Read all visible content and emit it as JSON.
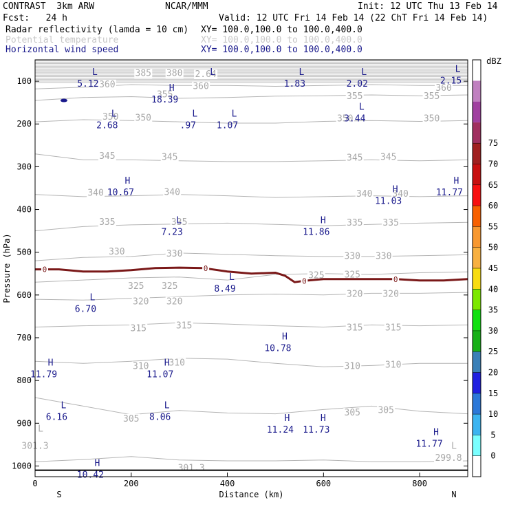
{
  "header": {
    "model": "CONTRAST  3km ARW",
    "org": "NCAR/MMM",
    "init": "Init: 12 UTC Thu 13 Feb 14",
    "fcst": "Fcst:   24 h",
    "valid": "Valid: 12 UTC Fri 14 Feb 14 (22 ChT Fri 14 Feb 14)",
    "fields": [
      {
        "label": "Radar reflectivity (lamda = 10 cm)",
        "xy": "XY= 100.0,100.0 to 100.0,400.0",
        "color": "#000000"
      },
      {
        "label": "Potential temperature",
        "xy": "XY= 100.0,100.0 to 100.0,400.0",
        "color": "#c8c8c8"
      },
      {
        "label": "Horizontal wind speed",
        "xy": "XY= 100.0,100.0 to 100.0,400.0",
        "color": "#1a1a8c"
      }
    ]
  },
  "chart_data": {
    "type": "cross-section",
    "xlabel": "Distance (km)",
    "ylabel": "Pressure (hPa)",
    "xlim": [
      0,
      900
    ],
    "ylim_pressure": [
      1025,
      50
    ],
    "x_ticks": [
      "0",
      "200",
      "400",
      "600",
      "800"
    ],
    "y_ticks": [
      "100",
      "200",
      "300",
      "400",
      "500",
      "600",
      "700",
      "800",
      "900",
      "1000"
    ],
    "end_labels": {
      "left": "S",
      "right": "N"
    },
    "theta_contours": [
      {
        "level": 300,
        "points": [
          [
            0,
            990
          ],
          [
            100,
            985
          ],
          [
            200,
            978
          ],
          [
            300,
            986
          ],
          [
            400,
            988
          ],
          [
            500,
            988
          ],
          [
            600,
            986
          ],
          [
            700,
            990
          ],
          [
            800,
            990
          ],
          [
            900,
            988
          ]
        ]
      },
      {
        "level": 305,
        "points": [
          [
            0,
            840
          ],
          [
            100,
            860
          ],
          [
            200,
            880
          ],
          [
            300,
            870
          ],
          [
            400,
            876
          ],
          [
            500,
            878
          ],
          [
            600,
            868
          ],
          [
            700,
            860
          ],
          [
            800,
            872
          ],
          [
            900,
            878
          ]
        ]
      },
      {
        "level": 310,
        "points": [
          [
            0,
            755
          ],
          [
            100,
            760
          ],
          [
            200,
            755
          ],
          [
            300,
            748
          ],
          [
            400,
            750
          ],
          [
            500,
            760
          ],
          [
            600,
            768
          ],
          [
            700,
            765
          ],
          [
            800,
            760
          ],
          [
            900,
            760
          ]
        ]
      },
      {
        "level": 315,
        "points": [
          [
            0,
            675
          ],
          [
            100,
            672
          ],
          [
            200,
            670
          ],
          [
            300,
            665
          ],
          [
            400,
            668
          ],
          [
            500,
            672
          ],
          [
            600,
            675
          ],
          [
            700,
            670
          ],
          [
            800,
            672
          ],
          [
            900,
            670
          ]
        ]
      },
      {
        "level": 320,
        "points": [
          [
            0,
            610
          ],
          [
            100,
            612
          ],
          [
            200,
            608
          ],
          [
            300,
            604
          ],
          [
            400,
            600
          ],
          [
            500,
            598
          ],
          [
            600,
            600
          ],
          [
            700,
            596
          ],
          [
            800,
            596
          ],
          [
            900,
            594
          ]
        ]
      },
      {
        "level": 325,
        "points": [
          [
            0,
            570
          ],
          [
            100,
            565
          ],
          [
            200,
            560
          ],
          [
            300,
            558
          ],
          [
            400,
            565
          ],
          [
            500,
            552
          ],
          [
            600,
            550
          ],
          [
            700,
            552
          ],
          [
            800,
            548
          ],
          [
            900,
            546
          ]
        ]
      },
      {
        "level": 330,
        "points": [
          [
            0,
            520
          ],
          [
            100,
            512
          ],
          [
            200,
            510
          ],
          [
            300,
            502
          ],
          [
            400,
            505
          ],
          [
            500,
            508
          ],
          [
            600,
            510
          ],
          [
            700,
            510
          ],
          [
            800,
            508
          ],
          [
            900,
            506
          ]
        ]
      },
      {
        "level": 335,
        "points": [
          [
            0,
            450
          ],
          [
            100,
            440
          ],
          [
            200,
            436
          ],
          [
            300,
            434
          ],
          [
            400,
            432
          ],
          [
            500,
            435
          ],
          [
            600,
            438
          ],
          [
            700,
            435
          ],
          [
            800,
            432
          ],
          [
            900,
            430
          ]
        ]
      },
      {
        "level": 340,
        "points": [
          [
            0,
            365
          ],
          [
            100,
            370
          ],
          [
            200,
            368
          ],
          [
            300,
            365
          ],
          [
            400,
            368
          ],
          [
            500,
            372
          ],
          [
            600,
            370
          ],
          [
            700,
            368
          ],
          [
            800,
            370
          ],
          [
            900,
            368
          ]
        ]
      },
      {
        "level": 345,
        "points": [
          [
            0,
            270
          ],
          [
            100,
            284
          ],
          [
            200,
            284
          ],
          [
            300,
            286
          ],
          [
            400,
            288
          ],
          [
            500,
            288
          ],
          [
            600,
            286
          ],
          [
            700,
            284
          ],
          [
            800,
            286
          ],
          [
            900,
            284
          ]
        ]
      },
      {
        "level": 350,
        "points": [
          [
            0,
            195
          ],
          [
            100,
            190
          ],
          [
            200,
            192
          ],
          [
            300,
            195
          ],
          [
            400,
            198
          ],
          [
            500,
            198
          ],
          [
            600,
            194
          ],
          [
            700,
            192
          ],
          [
            800,
            194
          ],
          [
            900,
            192
          ]
        ]
      },
      {
        "level": 355,
        "points": [
          [
            0,
            145
          ],
          [
            100,
            138
          ],
          [
            200,
            136
          ],
          [
            300,
            140
          ],
          [
            400,
            138
          ],
          [
            500,
            135
          ],
          [
            600,
            134
          ],
          [
            700,
            132
          ],
          [
            800,
            134
          ],
          [
            900,
            132
          ]
        ]
      },
      {
        "level": 360,
        "points": [
          [
            0,
            118
          ],
          [
            100,
            114
          ],
          [
            200,
            108
          ],
          [
            300,
            110
          ],
          [
            400,
            110
          ],
          [
            500,
            112
          ],
          [
            600,
            110
          ],
          [
            700,
            108
          ],
          [
            800,
            110
          ],
          [
            900,
            110
          ]
        ]
      }
    ],
    "theta_labels": [
      {
        "text": "385",
        "x": 225,
        "p": 80
      },
      {
        "text": "380",
        "x": 290,
        "p": 80
      },
      {
        "text": "2.64",
        "x": 355,
        "p": 82
      },
      {
        "text": "360",
        "x": 150,
        "p": 106
      },
      {
        "text": "360",
        "x": 345,
        "p": 110
      },
      {
        "text": "360",
        "x": 850,
        "p": 114
      },
      {
        "text": "355",
        "x": 270,
        "p": 130
      },
      {
        "text": "355",
        "x": 665,
        "p": 134
      },
      {
        "text": "355",
        "x": 825,
        "p": 134
      },
      {
        "text": "350",
        "x": 157,
        "p": 182
      },
      {
        "text": "350",
        "x": 225,
        "p": 184
      },
      {
        "text": "350",
        "x": 645,
        "p": 186
      },
      {
        "text": "350",
        "x": 825,
        "p": 186
      },
      {
        "text": "345",
        "x": 150,
        "p": 274
      },
      {
        "text": "345",
        "x": 280,
        "p": 276
      },
      {
        "text": "345",
        "x": 665,
        "p": 278
      },
      {
        "text": "345",
        "x": 735,
        "p": 276
      },
      {
        "text": "340",
        "x": 126,
        "p": 360
      },
      {
        "text": "340",
        "x": 285,
        "p": 358
      },
      {
        "text": "340",
        "x": 685,
        "p": 362
      },
      {
        "text": "340",
        "x": 760,
        "p": 362
      },
      {
        "text": "335",
        "x": 150,
        "p": 428
      },
      {
        "text": "335",
        "x": 300,
        "p": 428
      },
      {
        "text": "335",
        "x": 665,
        "p": 430
      },
      {
        "text": "335",
        "x": 740,
        "p": 430
      },
      {
        "text": "330",
        "x": 170,
        "p": 497
      },
      {
        "text": "330",
        "x": 290,
        "p": 502
      },
      {
        "text": "330",
        "x": 660,
        "p": 508
      },
      {
        "text": "330",
        "x": 725,
        "p": 508
      },
      {
        "text": "325",
        "x": 210,
        "p": 578
      },
      {
        "text": "325",
        "x": 280,
        "p": 578
      },
      {
        "text": "325",
        "x": 585,
        "p": 553
      },
      {
        "text": "325",
        "x": 660,
        "p": 551
      },
      {
        "text": "320",
        "x": 220,
        "p": 614
      },
      {
        "text": "320",
        "x": 290,
        "p": 614
      },
      {
        "text": "320",
        "x": 665,
        "p": 596
      },
      {
        "text": "320",
        "x": 740,
        "p": 596
      },
      {
        "text": "315",
        "x": 215,
        "p": 677
      },
      {
        "text": "315",
        "x": 310,
        "p": 670
      },
      {
        "text": "315",
        "x": 665,
        "p": 675
      },
      {
        "text": "315",
        "x": 745,
        "p": 675
      },
      {
        "text": "310",
        "x": 220,
        "p": 765
      },
      {
        "text": "310",
        "x": 295,
        "p": 757
      },
      {
        "text": "310",
        "x": 660,
        "p": 765
      },
      {
        "text": "310",
        "x": 745,
        "p": 762
      },
      {
        "text": "305",
        "x": 200,
        "p": 888
      },
      {
        "text": "305",
        "x": 660,
        "p": 874
      },
      {
        "text": "305",
        "x": 730,
        "p": 868
      },
      {
        "text": "301.3",
        "x": 0,
        "p": 952
      },
      {
        "text": "301.3",
        "x": 325,
        "p": 1003
      },
      {
        "text": "299.8",
        "x": 860,
        "p": 980
      }
    ],
    "theta_extrema": [
      {
        "type": "L",
        "x": 0,
        "p": 920
      },
      {
        "type": "L",
        "x": 860,
        "p": 960
      }
    ],
    "wind_extrema": [
      {
        "type": "L",
        "value": "5.12",
        "x": 110,
        "p": 85
      },
      {
        "type": "L",
        "value": "",
        "x": 355,
        "p": 85
      },
      {
        "type": "L",
        "value": "1.83",
        "x": 540,
        "p": 85
      },
      {
        "type": "L",
        "value": "2.02",
        "x": 670,
        "p": 85
      },
      {
        "type": "L",
        "value": "2.15",
        "x": 865,
        "p": 78
      },
      {
        "type": "H",
        "value": "18.39",
        "x": 270,
        "p": 122
      },
      {
        "type": "L",
        "value": "2.68",
        "x": 150,
        "p": 183
      },
      {
        "type": "L",
        "value": ".97",
        "x": 318,
        "p": 183
      },
      {
        "type": "L",
        "value": "1.07",
        "x": 400,
        "p": 183
      },
      {
        "type": "L",
        "value": "3.44",
        "x": 665,
        "p": 167
      },
      {
        "type": "H",
        "value": "10.67",
        "x": 178,
        "p": 340
      },
      {
        "type": "H",
        "value": "11.03",
        "x": 735,
        "p": 360
      },
      {
        "type": "H",
        "value": "11.77",
        "x": 862,
        "p": 340
      },
      {
        "type": "L",
        "value": "7.23",
        "x": 285,
        "p": 432
      },
      {
        "type": "H",
        "value": "11.86",
        "x": 585,
        "p": 432
      },
      {
        "type": "L",
        "value": "8.49",
        "x": 395,
        "p": 565
      },
      {
        "type": "L",
        "value": "6.70",
        "x": 105,
        "p": 612
      },
      {
        "type": "H",
        "value": "10.78",
        "x": 505,
        "p": 704
      },
      {
        "type": "H",
        "value": "11.79",
        "x": 18,
        "p": 765
      },
      {
        "type": "H",
        "value": "11.07",
        "x": 260,
        "p": 765
      },
      {
        "type": "L",
        "value": "6.16",
        "x": 45,
        "p": 865
      },
      {
        "type": "L",
        "value": "8.06",
        "x": 260,
        "p": 865
      },
      {
        "type": "H",
        "value": "11.24",
        "x": 510,
        "p": 895
      },
      {
        "type": "H",
        "value": "11.73",
        "x": 585,
        "p": 895
      },
      {
        "type": "H",
        "value": "11.77",
        "x": 820,
        "p": 928
      },
      {
        "type": "H",
        "value": "10.42",
        "x": 115,
        "p": 1000
      }
    ],
    "reflectivity_zero_contour": {
      "level": "0",
      "points": [
        [
          0,
          540
        ],
        [
          50,
          540
        ],
        [
          100,
          545
        ],
        [
          150,
          545
        ],
        [
          200,
          542
        ],
        [
          250,
          537
        ],
        [
          300,
          536
        ],
        [
          350,
          537
        ],
        [
          400,
          545
        ],
        [
          450,
          550
        ],
        [
          500,
          548
        ],
        [
          520,
          555
        ],
        [
          540,
          570
        ],
        [
          560,
          567
        ],
        [
          600,
          563
        ],
        [
          650,
          563
        ],
        [
          700,
          563
        ],
        [
          750,
          563
        ],
        [
          800,
          566
        ],
        [
          850,
          566
        ],
        [
          900,
          563
        ]
      ],
      "labels": [
        {
          "x": 20
        },
        {
          "x": 355
        },
        {
          "x": 560
        },
        {
          "x": 750
        }
      ]
    },
    "reflectivity_blob": {
      "x": 60,
      "p": 145
    },
    "colorbar": {
      "unit": "dBZ",
      "levels": [
        "0",
        "5",
        "10",
        "15",
        "20",
        "25",
        "30",
        "35",
        "40",
        "45",
        "50",
        "55",
        "60",
        "65",
        "70",
        "75"
      ],
      "colors": [
        "#ffffff",
        "#7affff",
        "#3cb4f0",
        "#2c78d8",
        "#2020e0",
        "#3a80b8",
        "#18b018",
        "#10e010",
        "#7ce800",
        "#f8dc10",
        "#f8b040",
        "#f89830",
        "#f86000",
        "#f81010",
        "#c81010",
        "#a02020",
        "#a03060",
        "#a040a0",
        "#c080c0",
        "#ffffff"
      ]
    }
  }
}
